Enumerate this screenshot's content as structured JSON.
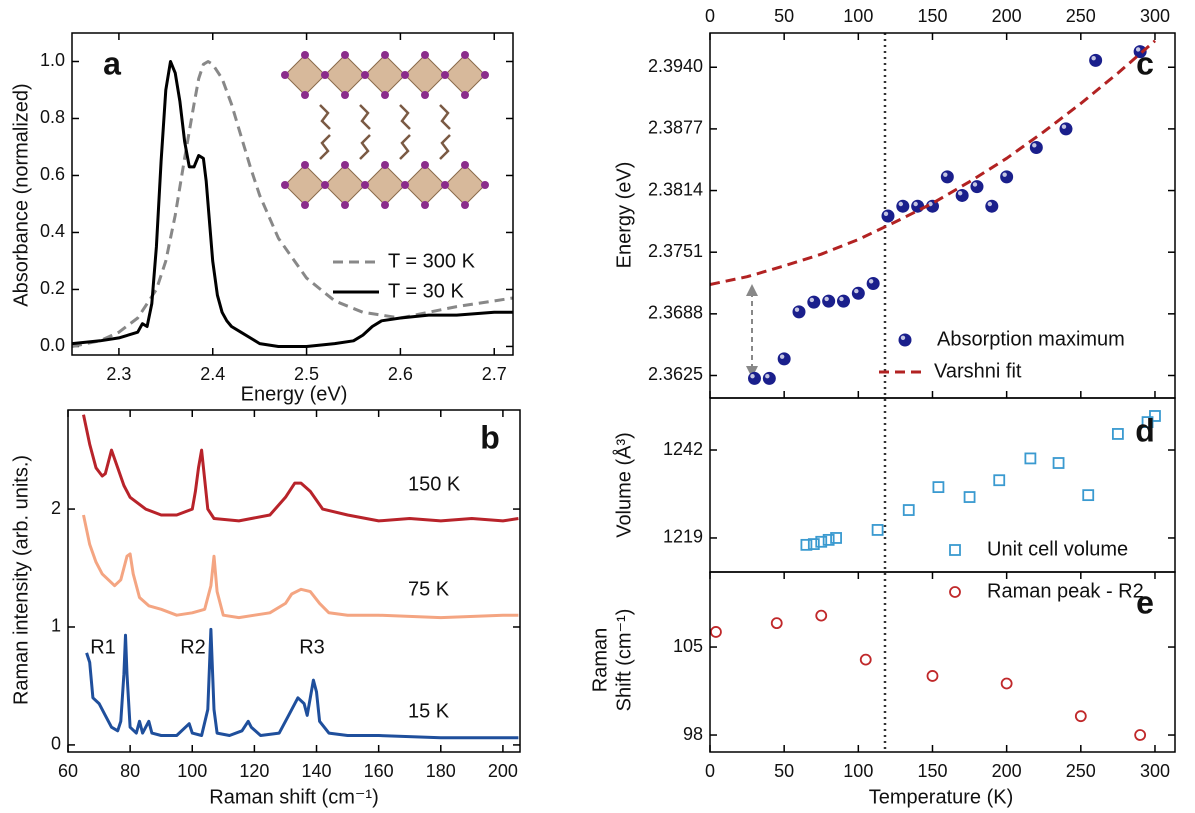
{
  "chart_data": [
    {
      "type": "line",
      "panel": "a",
      "xlabel": "Energy (eV)",
      "ylabel": "Absorbance (normalized)",
      "xlim": [
        2.25,
        2.72
      ],
      "ylim": [
        -0.03,
        1.1
      ],
      "xticks": [
        2.3,
        2.4,
        2.5,
        2.6,
        2.7
      ],
      "yticks": [
        {
          "value": 0,
          "label": "0.0"
        },
        0.2,
        0.4,
        0.6,
        0.8,
        {
          "value": 1,
          "label": "1.0"
        }
      ],
      "legend": true,
      "series": [
        {
          "name": "T = 300 K",
          "color": "#888888",
          "dash": true,
          "x": [
            2.25,
            2.28,
            2.3,
            2.32,
            2.34,
            2.35,
            2.36,
            2.37,
            2.38,
            2.385,
            2.39,
            2.395,
            2.4,
            2.41,
            2.42,
            2.43,
            2.44,
            2.45,
            2.47,
            2.5,
            2.53,
            2.56,
            2.6,
            2.63,
            2.66,
            2.7,
            2.72
          ],
          "values": [
            0.0,
            0.02,
            0.05,
            0.1,
            0.2,
            0.3,
            0.46,
            0.66,
            0.85,
            0.94,
            0.99,
            1.0,
            0.99,
            0.94,
            0.85,
            0.74,
            0.63,
            0.53,
            0.38,
            0.24,
            0.16,
            0.12,
            0.1,
            0.12,
            0.14,
            0.16,
            0.17
          ]
        },
        {
          "name": "T = 30 K",
          "color": "#000000",
          "x": [
            2.25,
            2.28,
            2.3,
            2.32,
            2.325,
            2.33,
            2.335,
            2.34,
            2.345,
            2.35,
            2.355,
            2.36,
            2.365,
            2.37,
            2.375,
            2.38,
            2.385,
            2.39,
            2.393,
            2.397,
            2.4,
            2.405,
            2.41,
            2.415,
            2.42,
            2.43,
            2.44,
            2.45,
            2.47,
            2.5,
            2.53,
            2.55,
            2.56,
            2.57,
            2.58,
            2.6,
            2.63,
            2.66,
            2.7,
            2.72
          ],
          "values": [
            0.01,
            0.02,
            0.03,
            0.05,
            0.08,
            0.07,
            0.15,
            0.35,
            0.65,
            0.9,
            1.0,
            0.96,
            0.86,
            0.72,
            0.63,
            0.63,
            0.67,
            0.66,
            0.58,
            0.42,
            0.3,
            0.18,
            0.12,
            0.09,
            0.07,
            0.05,
            0.03,
            0.01,
            0.0,
            0.0,
            0.01,
            0.02,
            0.04,
            0.07,
            0.09,
            0.1,
            0.11,
            0.11,
            0.12,
            0.12
          ]
        }
      ]
    },
    {
      "type": "line",
      "panel": "b",
      "xlabel": "Raman shift (cm⁻¹)",
      "ylabel": "Raman intensity (arb. units.)",
      "xlim": [
        60,
        205.5
      ],
      "ylim": [
        -0.06,
        2.84
      ],
      "xticks": [
        60,
        80,
        100,
        120,
        140,
        160,
        180,
        200
      ],
      "yticks": [
        0,
        1,
        2
      ],
      "series_labels": true,
      "series": [
        {
          "name": "150 K",
          "color": "#b8232a",
          "x": [
            65,
            67,
            69,
            71,
            72,
            74,
            76,
            78,
            80,
            85,
            90,
            95,
            100,
            101,
            102,
            103,
            104,
            105,
            107,
            115,
            125,
            130,
            133,
            135,
            138,
            142,
            150,
            160,
            170,
            180,
            190,
            200,
            205
          ],
          "values": [
            2.8,
            2.55,
            2.35,
            2.28,
            2.3,
            2.5,
            2.35,
            2.2,
            2.1,
            2.0,
            1.95,
            1.95,
            2.0,
            2.15,
            2.35,
            2.5,
            2.25,
            2.0,
            1.92,
            1.9,
            1.95,
            2.1,
            2.22,
            2.22,
            2.15,
            2.0,
            1.95,
            1.9,
            1.92,
            1.9,
            1.92,
            1.9,
            1.92
          ]
        },
        {
          "name": "75 K",
          "color": "#f4a582",
          "x": [
            65,
            67,
            69,
            71,
            73,
            75,
            77,
            79,
            80,
            81,
            83,
            86,
            90,
            95,
            100,
            104,
            106,
            107,
            108,
            110,
            115,
            120,
            125,
            130,
            132,
            135,
            138,
            141,
            144,
            150,
            160,
            180,
            200,
            205
          ],
          "values": [
            1.95,
            1.7,
            1.55,
            1.45,
            1.4,
            1.35,
            1.4,
            1.6,
            1.62,
            1.45,
            1.25,
            1.18,
            1.15,
            1.1,
            1.12,
            1.15,
            1.35,
            1.6,
            1.3,
            1.1,
            1.08,
            1.1,
            1.12,
            1.2,
            1.28,
            1.32,
            1.3,
            1.2,
            1.12,
            1.1,
            1.1,
            1.08,
            1.1,
            1.1
          ]
        },
        {
          "name": "15 K",
          "color": "#1f4f9c",
          "x": [
            66,
            67,
            68,
            70,
            72,
            74,
            76,
            77,
            78,
            78.5,
            79,
            80,
            82,
            83,
            84,
            86,
            87,
            90,
            95,
            99,
            100,
            103,
            105,
            106,
            107,
            108,
            112,
            116,
            118,
            119,
            122,
            128,
            131,
            134,
            136,
            137,
            139,
            140,
            141,
            144,
            150,
            160,
            180,
            200,
            205
          ],
          "values": [
            0.78,
            0.7,
            0.4,
            0.35,
            0.25,
            0.15,
            0.12,
            0.2,
            0.6,
            0.93,
            0.6,
            0.15,
            0.1,
            0.2,
            0.1,
            0.2,
            0.1,
            0.08,
            0.08,
            0.18,
            0.1,
            0.08,
            0.3,
            0.98,
            0.3,
            0.1,
            0.08,
            0.12,
            0.2,
            0.15,
            0.08,
            0.1,
            0.25,
            0.4,
            0.35,
            0.25,
            0.55,
            0.45,
            0.2,
            0.1,
            0.08,
            0.08,
            0.06,
            0.06,
            0.06
          ]
        }
      ],
      "annotations": [
        "R1",
        "R2",
        "R3"
      ]
    },
    {
      "type": "scatter",
      "panel": "c",
      "ylabel": "Energy (eV)",
      "xaxis": "top",
      "xlim": [
        0,
        313.5
      ],
      "ylim": [
        2.3602,
        2.3975
      ],
      "xticks": [
        0,
        50,
        100,
        150,
        200,
        250,
        300
      ],
      "yticks": [
        2.3625,
        2.3688,
        2.3751,
        2.3814,
        2.3877,
        {
          "value": 2.394,
          "label": "2.3940"
        }
      ],
      "legend": true,
      "series": [
        {
          "name": "Absorption maximum",
          "color": "#1a1f8c",
          "marker": "ball",
          "x": [
            30,
            40,
            50,
            60,
            70,
            80,
            90,
            100,
            110,
            120,
            130,
            140,
            150,
            160,
            170,
            180,
            190,
            200,
            220,
            240,
            260,
            290
          ],
          "values": [
            2.3622,
            2.3622,
            2.3642,
            2.369,
            2.37,
            2.3701,
            2.3701,
            2.3709,
            2.3719,
            2.3788,
            2.3798,
            2.3798,
            2.3798,
            2.3828,
            2.3809,
            2.3818,
            2.3798,
            2.3828,
            2.3858,
            2.3877,
            2.3947,
            2.3956
          ]
        },
        {
          "name": "Varshni fit",
          "color": "#b22222",
          "type": "line",
          "dash": true,
          "x": [
            0,
            25,
            50,
            75,
            100,
            125,
            150,
            175,
            200,
            225,
            250,
            275,
            300
          ],
          "values": [
            2.3718,
            2.3726,
            2.3737,
            2.3749,
            2.3764,
            2.3782,
            2.3801,
            2.3823,
            2.3847,
            2.3874,
            2.3903,
            2.3934,
            2.3967
          ]
        }
      ]
    },
    {
      "type": "scatter",
      "panel": "d",
      "ylabel": "Volume (Å³)",
      "xlim": [
        0,
        313.5
      ],
      "ylim": [
        1210.1,
        1255.6
      ],
      "yticks": [
        1219,
        1242
      ],
      "legend": true,
      "series": [
        {
          "name": "Unit cell volume",
          "color": "#3a9ad0",
          "marker": "square",
          "x": [
            65,
            70,
            75,
            80,
            85,
            113,
            134,
            154,
            175,
            195,
            216,
            235,
            255,
            275,
            295,
            300
          ],
          "values": [
            1217.2,
            1217.4,
            1218,
            1218.5,
            1219,
            1221.1,
            1226.3,
            1232.3,
            1229.7,
            1234.1,
            1239.8,
            1238.6,
            1230.2,
            1246.2,
            1249.3,
            1250.9
          ]
        }
      ]
    },
    {
      "type": "scatter",
      "panel": "e",
      "ylabel": [
        "Raman",
        "Shift (cm⁻¹)"
      ],
      "xlabel": "Temperature (K)",
      "xlim": [
        0,
        313.5
      ],
      "ylim": [
        96.65,
        110.97
      ],
      "xticks": [
        0,
        50,
        100,
        150,
        200,
        250,
        300
      ],
      "yticks": [
        98,
        105
      ],
      "legend": true,
      "series": [
        {
          "name": "Raman peak - R2",
          "color": "#c0282a",
          "marker": "circle",
          "x": [
            4,
            45,
            75,
            105,
            150,
            200,
            250,
            290
          ],
          "values": [
            106.2,
            106.9,
            107.5,
            104.0,
            102.7,
            102.1,
            99.5,
            98.0
          ]
        }
      ]
    }
  ]
}
